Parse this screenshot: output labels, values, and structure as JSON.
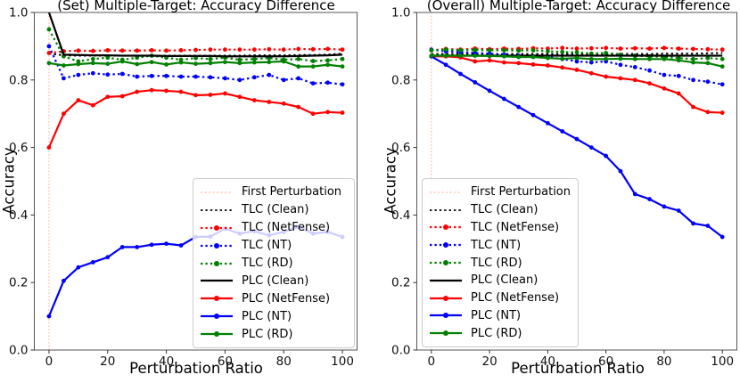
{
  "figure": {
    "background": "#ffffff",
    "accent_colors": {
      "red": "#ff0000",
      "blue": "#0000ff",
      "green": "#008000",
      "black": "#000000",
      "first_perturbation": "#ffb3a0"
    }
  },
  "chart_data": [
    {
      "type": "line",
      "title": "(Set) Multiple-Target: Accuracy Difference",
      "xlabel": "Perturbation Ratio",
      "ylabel": "Accuracy",
      "xlim": [
        -5,
        105
      ],
      "ylim": [
        0,
        1
      ],
      "xticks": [
        "0",
        "20",
        "40",
        "60",
        "80",
        "100"
      ],
      "xtick_values": [
        0,
        20,
        40,
        60,
        80,
        100
      ],
      "yticks": [
        "0.0",
        "0.2",
        "0.4",
        "0.6",
        "0.8",
        "1.0"
      ],
      "ytick_values": [
        0,
        0.2,
        0.4,
        0.6,
        0.8,
        1.0
      ],
      "grid": false,
      "first_perturbation_x": 0,
      "x": [
        0,
        5,
        10,
        15,
        20,
        25,
        30,
        35,
        40,
        45,
        50,
        55,
        60,
        65,
        70,
        75,
        80,
        85,
        90,
        95,
        100
      ],
      "series": [
        {
          "name": "TLC (Clean)",
          "color": "#000000",
          "style": "dotted",
          "marker": false,
          "values": [
            0.878,
            0.873,
            0.872,
            0.872,
            0.872,
            0.872,
            0.872,
            0.872,
            0.872,
            0.872,
            0.872,
            0.872,
            0.872,
            0.872,
            0.873,
            0.873,
            0.873,
            0.874,
            0.874,
            0.875,
            0.878
          ]
        },
        {
          "name": "TLC (NetFense)",
          "color": "#ff0000",
          "style": "dotted",
          "marker": true,
          "values": [
            0.88,
            0.885,
            0.887,
            0.886,
            0.888,
            0.887,
            0.887,
            0.888,
            0.887,
            0.888,
            0.889,
            0.89,
            0.89,
            0.89,
            0.89,
            0.891,
            0.89,
            0.892,
            0.891,
            0.892,
            0.89
          ]
        },
        {
          "name": "TLC (NT)",
          "color": "#0000ff",
          "style": "dotted",
          "marker": true,
          "values": [
            0.9,
            0.805,
            0.815,
            0.82,
            0.816,
            0.818,
            0.81,
            0.812,
            0.812,
            0.81,
            0.81,
            0.808,
            0.805,
            0.8,
            0.808,
            0.815,
            0.8,
            0.805,
            0.79,
            0.792,
            0.787
          ]
        },
        {
          "name": "TLC (RD)",
          "color": "#008000",
          "style": "dotted",
          "marker": true,
          "values": [
            0.95,
            0.87,
            0.855,
            0.862,
            0.866,
            0.86,
            0.866,
            0.872,
            0.866,
            0.86,
            0.865,
            0.862,
            0.866,
            0.86,
            0.862,
            0.865,
            0.86,
            0.862,
            0.856,
            0.858,
            0.862
          ]
        },
        {
          "name": "PLC (Clean)",
          "color": "#000000",
          "style": "solid",
          "marker": false,
          "values": [
            1.0,
            0.875,
            0.874,
            0.873,
            0.873,
            0.872,
            0.872,
            0.872,
            0.871,
            0.871,
            0.871,
            0.871,
            0.87,
            0.87,
            0.87,
            0.87,
            0.87,
            0.871,
            0.872,
            0.873,
            0.875
          ]
        },
        {
          "name": "PLC (NetFense)",
          "color": "#ff0000",
          "style": "solid",
          "marker": true,
          "values": [
            0.6,
            0.7,
            0.74,
            0.725,
            0.75,
            0.752,
            0.765,
            0.77,
            0.768,
            0.765,
            0.755,
            0.756,
            0.76,
            0.75,
            0.74,
            0.735,
            0.73,
            0.72,
            0.7,
            0.705,
            0.703
          ]
        },
        {
          "name": "PLC (NT)",
          "color": "#0000ff",
          "style": "solid",
          "marker": true,
          "values": [
            0.1,
            0.205,
            0.245,
            0.26,
            0.275,
            0.305,
            0.305,
            0.312,
            0.315,
            0.31,
            0.335,
            0.336,
            0.36,
            0.345,
            0.352,
            0.34,
            0.35,
            0.365,
            0.345,
            0.35,
            0.335
          ]
        },
        {
          "name": "PLC (RD)",
          "color": "#008000",
          "style": "solid",
          "marker": true,
          "values": [
            0.85,
            0.843,
            0.847,
            0.85,
            0.848,
            0.855,
            0.847,
            0.853,
            0.846,
            0.852,
            0.848,
            0.85,
            0.853,
            0.85,
            0.852,
            0.853,
            0.855,
            0.84,
            0.84,
            0.845,
            0.84
          ]
        }
      ],
      "legend": {
        "position": "lower-right",
        "items": [
          {
            "label": "First Perturbation",
            "color": "#ffb3a0",
            "style": "dotted-thin",
            "marker": false
          },
          {
            "label": "TLC (Clean)",
            "color": "#000000",
            "style": "dotted",
            "marker": false
          },
          {
            "label": "TLC (NetFense)",
            "color": "#ff0000",
            "style": "dotted",
            "marker": true
          },
          {
            "label": "TLC (NT)",
            "color": "#0000ff",
            "style": "dotted",
            "marker": true
          },
          {
            "label": "TLC (RD)",
            "color": "#008000",
            "style": "dotted",
            "marker": true
          },
          {
            "label": "PLC (Clean)",
            "color": "#000000",
            "style": "solid",
            "marker": false
          },
          {
            "label": "PLC (NetFense)",
            "color": "#ff0000",
            "style": "solid",
            "marker": true
          },
          {
            "label": "PLC (NT)",
            "color": "#0000ff",
            "style": "solid",
            "marker": true
          },
          {
            "label": "PLC (RD)",
            "color": "#008000",
            "style": "solid",
            "marker": true
          }
        ]
      }
    },
    {
      "type": "line",
      "title": "(Overall) Multiple-Target: Accuracy Difference",
      "xlabel": "Perturbation Ratio",
      "ylabel": "Accuracy",
      "xlim": [
        -5,
        105
      ],
      "ylim": [
        0,
        1
      ],
      "xticks": [
        "0",
        "20",
        "40",
        "60",
        "80",
        "100"
      ],
      "xtick_values": [
        0,
        20,
        40,
        60,
        80,
        100
      ],
      "yticks": [
        "0.0",
        "0.2",
        "0.4",
        "0.6",
        "0.8",
        "1.0"
      ],
      "ytick_values": [
        0,
        0.2,
        0.4,
        0.6,
        0.8,
        1.0
      ],
      "grid": false,
      "first_perturbation_x": 0,
      "x": [
        0,
        5,
        10,
        15,
        20,
        25,
        30,
        35,
        40,
        45,
        50,
        55,
        60,
        65,
        70,
        75,
        80,
        85,
        90,
        95,
        100
      ],
      "series": [
        {
          "name": "TLC (Clean)",
          "color": "#000000",
          "style": "dotted",
          "marker": false,
          "values": [
            0.877,
            0.877,
            0.877,
            0.877,
            0.877,
            0.877,
            0.877,
            0.877,
            0.877,
            0.877,
            0.877,
            0.877,
            0.877,
            0.877,
            0.877,
            0.877,
            0.878,
            0.878,
            0.878,
            0.879,
            0.88
          ]
        },
        {
          "name": "TLC (NetFense)",
          "color": "#ff0000",
          "style": "dotted",
          "marker": true,
          "values": [
            0.888,
            0.892,
            0.89,
            0.893,
            0.891,
            0.893,
            0.892,
            0.894,
            0.893,
            0.895,
            0.893,
            0.894,
            0.895,
            0.893,
            0.894,
            0.893,
            0.895,
            0.893,
            0.892,
            0.891,
            0.89
          ]
        },
        {
          "name": "TLC (NT)",
          "color": "#0000ff",
          "style": "dotted",
          "marker": true,
          "values": [
            0.89,
            0.885,
            0.882,
            0.88,
            0.878,
            0.875,
            0.872,
            0.87,
            0.868,
            0.862,
            0.855,
            0.852,
            0.855,
            0.845,
            0.838,
            0.828,
            0.815,
            0.812,
            0.8,
            0.795,
            0.787
          ]
        },
        {
          "name": "TLC (RD)",
          "color": "#008000",
          "style": "dotted",
          "marker": true,
          "values": [
            0.888,
            0.89,
            0.888,
            0.889,
            0.888,
            0.888,
            0.887,
            0.888,
            0.885,
            0.883,
            0.882,
            0.878,
            0.88,
            0.875,
            0.872,
            0.87,
            0.868,
            0.865,
            0.862,
            0.865,
            0.862
          ]
        },
        {
          "name": "PLC (Clean)",
          "color": "#000000",
          "style": "solid",
          "marker": false,
          "values": [
            0.872,
            0.872,
            0.872,
            0.872,
            0.872,
            0.872,
            0.872,
            0.872,
            0.872,
            0.872,
            0.872,
            0.872,
            0.872,
            0.872,
            0.872,
            0.872,
            0.872,
            0.872,
            0.872,
            0.872,
            0.872
          ]
        },
        {
          "name": "PLC (NetFense)",
          "color": "#ff0000",
          "style": "solid",
          "marker": true,
          "values": [
            0.87,
            0.87,
            0.867,
            0.855,
            0.858,
            0.852,
            0.85,
            0.846,
            0.843,
            0.837,
            0.83,
            0.82,
            0.81,
            0.805,
            0.8,
            0.79,
            0.775,
            0.76,
            0.72,
            0.705,
            0.703
          ]
        },
        {
          "name": "PLC (NT)",
          "color": "#0000ff",
          "style": "solid",
          "marker": true,
          "values": [
            0.87,
            0.845,
            0.818,
            0.793,
            0.768,
            0.744,
            0.72,
            0.696,
            0.672,
            0.648,
            0.625,
            0.6,
            0.575,
            0.53,
            0.462,
            0.447,
            0.425,
            0.413,
            0.375,
            0.368,
            0.335
          ]
        },
        {
          "name": "PLC (RD)",
          "color": "#008000",
          "style": "solid",
          "marker": true,
          "values": [
            0.872,
            0.872,
            0.872,
            0.872,
            0.871,
            0.87,
            0.868,
            0.868,
            0.865,
            0.863,
            0.865,
            0.862,
            0.862,
            0.863,
            0.862,
            0.862,
            0.862,
            0.858,
            0.852,
            0.85,
            0.84
          ]
        }
      ],
      "legend": {
        "position": "lower-left",
        "items": [
          {
            "label": "First Perturbation",
            "color": "#ffb3a0",
            "style": "dotted-thin",
            "marker": false
          },
          {
            "label": "TLC (Clean)",
            "color": "#000000",
            "style": "dotted",
            "marker": false
          },
          {
            "label": "TLC (NetFense)",
            "color": "#ff0000",
            "style": "dotted",
            "marker": true
          },
          {
            "label": "TLC (NT)",
            "color": "#0000ff",
            "style": "dotted",
            "marker": true
          },
          {
            "label": "TLC (RD)",
            "color": "#008000",
            "style": "dotted",
            "marker": true
          },
          {
            "label": "PLC (Clean)",
            "color": "#000000",
            "style": "solid",
            "marker": false
          },
          {
            "label": "PLC (NetFense)",
            "color": "#ff0000",
            "style": "solid",
            "marker": true
          },
          {
            "label": "PLC (NT)",
            "color": "#0000ff",
            "style": "solid",
            "marker": true
          },
          {
            "label": "PLC (RD)",
            "color": "#008000",
            "style": "solid",
            "marker": true
          }
        ]
      }
    }
  ]
}
